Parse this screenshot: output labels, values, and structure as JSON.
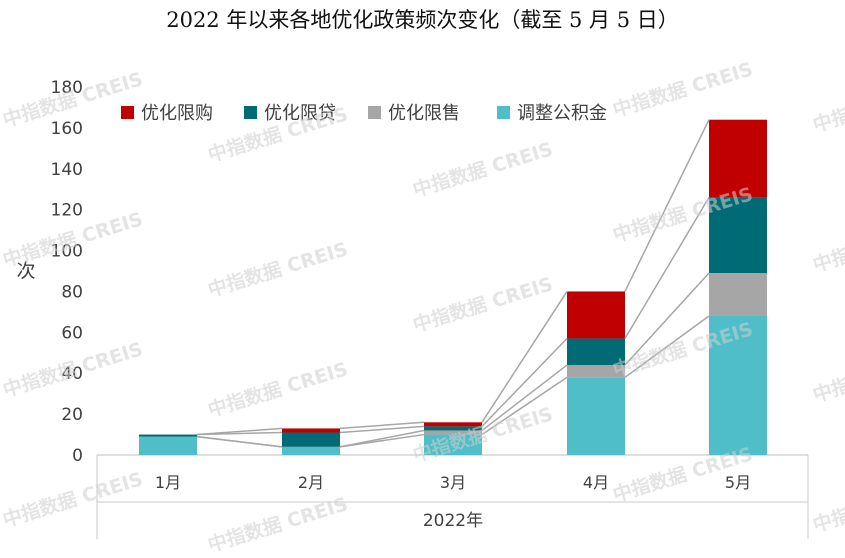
{
  "chart_data": {
    "type": "bar",
    "stacked": true,
    "title": "2022 年以来各地优化政策频次变化（截至 5 月 5 日）",
    "ylabel": "次",
    "xlabel": "2022年",
    "ylim": [
      0,
      180
    ],
    "yticks": [
      0,
      20,
      40,
      60,
      80,
      100,
      120,
      140,
      160,
      180
    ],
    "categories": [
      "1月",
      "2月",
      "3月",
      "4月",
      "5月"
    ],
    "series": [
      {
        "name": "调整公积金",
        "color": "#4fbec8",
        "values": [
          9,
          4,
          10,
          38,
          68
        ]
      },
      {
        "name": "优化限售",
        "color": "#a6a6a6",
        "values": [
          0,
          0,
          2,
          6,
          21
        ]
      },
      {
        "name": "优化限贷",
        "color": "#006b74",
        "values": [
          1,
          7,
          2,
          13,
          37
        ]
      },
      {
        "name": "优化限购",
        "color": "#c00000",
        "values": [
          0,
          2,
          2,
          23,
          38
        ]
      }
    ],
    "legend_order": [
      "优化限购",
      "优化限贷",
      "优化限售",
      "调整公积金"
    ],
    "legend_position": "top-left",
    "connector_lines": true,
    "grid": false
  },
  "watermark": "中指数据 CREIS"
}
